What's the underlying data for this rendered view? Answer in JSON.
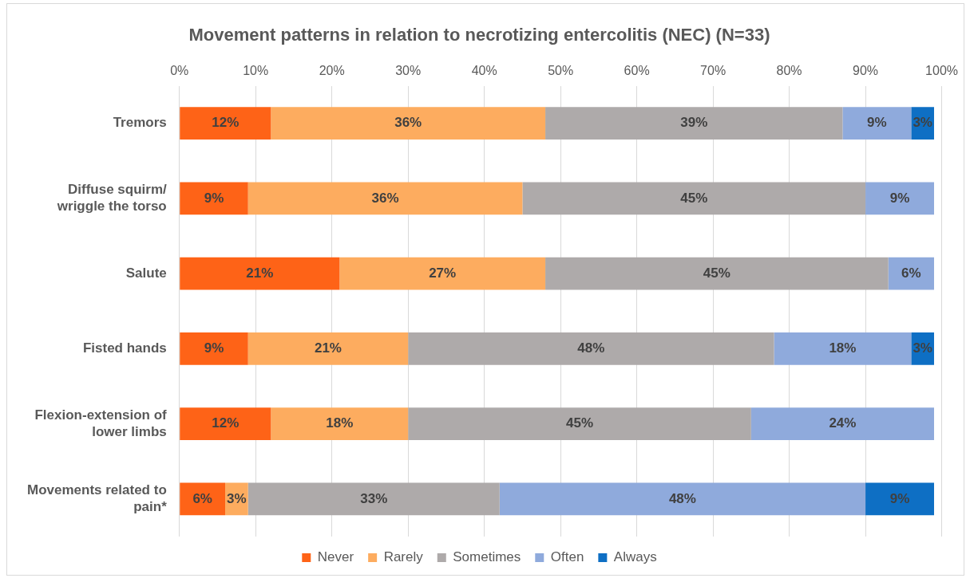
{
  "chart_data": {
    "type": "bar",
    "orientation": "horizontal",
    "stacked": true,
    "title": "Movement patterns in relation to necrotizing entercolitis (NEC) (N=33)",
    "categories": [
      "Tremors",
      "Diffuse squirm/ wriggle the torso",
      "Salute",
      "Fisted hands",
      "Flexion-extension of lower limbs",
      "Movements related to pain*"
    ],
    "series": [
      {
        "name": "Never",
        "color": "#fe6317",
        "values": [
          12,
          9,
          21,
          9,
          12,
          6
        ],
        "value_labels": [
          "12%",
          "9%",
          "21%",
          "9%",
          "12%",
          "6%"
        ]
      },
      {
        "name": "Rarely",
        "color": "#fdac5f",
        "values": [
          36,
          36,
          27,
          21,
          18,
          3
        ],
        "value_labels": [
          "36%",
          "36%",
          "27%",
          "21%",
          "18%",
          "3%"
        ]
      },
      {
        "name": "Sometimes",
        "color": "#aeaaaa",
        "values": [
          39,
          45,
          45,
          48,
          45,
          33
        ],
        "value_labels": [
          "39%",
          "45%",
          "45%",
          "48%",
          "45%",
          "33%"
        ]
      },
      {
        "name": "Often",
        "color": "#8faadc",
        "values": [
          9,
          9,
          6,
          18,
          24,
          48
        ],
        "value_labels": [
          "9%",
          "9%",
          "6%",
          "18%",
          "24%",
          "48%"
        ]
      },
      {
        "name": "Always",
        "color": "#0e6fc4",
        "values": [
          3,
          null,
          null,
          3,
          null,
          9
        ],
        "value_labels": [
          "3%",
          null,
          null,
          "3%",
          null,
          "9%"
        ]
      }
    ],
    "xlim": [
      0,
      100
    ],
    "xticks": [
      {
        "value": 0,
        "label": "0%"
      },
      {
        "value": 10,
        "label": "10%"
      },
      {
        "value": 20,
        "label": "20%"
      },
      {
        "value": 30,
        "label": "30%"
      },
      {
        "value": 40,
        "label": "40%"
      },
      {
        "value": 50,
        "label": "50%"
      },
      {
        "value": 60,
        "label": "60%"
      },
      {
        "value": 70,
        "label": "70%"
      },
      {
        "value": 80,
        "label": "80%"
      },
      {
        "value": 90,
        "label": "90%"
      },
      {
        "value": 100,
        "label": "100%"
      }
    ],
    "grid": "x",
    "legend": "bottom"
  }
}
